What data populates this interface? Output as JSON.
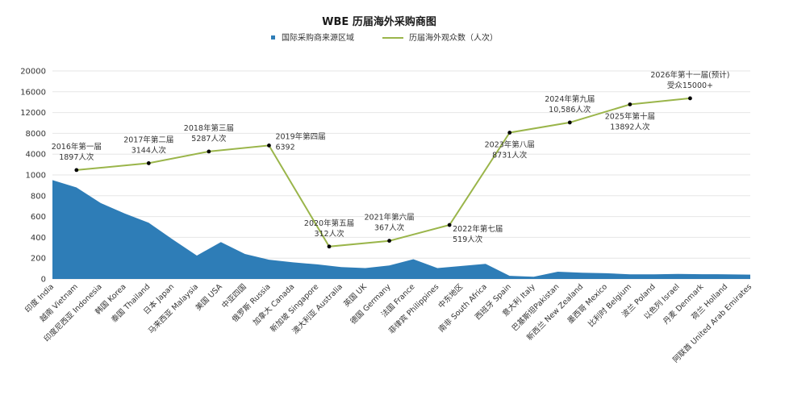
{
  "chart_data": {
    "type": "area+line",
    "title": "WBE 历届海外采购商图",
    "legend": {
      "placement": "top",
      "area_label": "国际采购商来源区域",
      "line_label": "历届海外观众数（人次）"
    },
    "colors": {
      "area": "#2e7db7",
      "line": "#9ab54a",
      "marker": "#000000",
      "grid": "#e6e6e6"
    },
    "y_ticks": [
      "0",
      "200",
      "400",
      "600",
      "800",
      "1000",
      "4000",
      "8000",
      "12000",
      "16000",
      "20000"
    ],
    "categories": [
      "印度 India",
      "越南 Vietnam",
      "印度尼西亚 Indonesia",
      "韩国 Korea",
      "泰国 Thailand",
      "日本 Japan",
      "马来西亚 Malaysia",
      "美国 USA",
      "中亚四国",
      "俄罗斯 Russia",
      "加拿大 Canada",
      "新加坡 Singapore",
      "澳大利亚 Australia",
      "英国 UK",
      "德国 Germany",
      "法国 France",
      "菲律宾 Philippines",
      "中东地区",
      "南非 South Africa",
      "西班牙 Spain",
      "意大利 Italy",
      "巴基斯坦Pakistan",
      "新西兰 New Zealand",
      "墨西哥 Mexico",
      "比利时 Belgium",
      "波兰 Poland",
      "以色列 Israel",
      "丹麦 Denmark",
      "荷兰 Holland",
      "阿联酋 United Arab Emirates"
    ],
    "area_series": {
      "name": "国际采购商来源区域",
      "values": [
        950,
        880,
        730,
        630,
        540,
        380,
        225,
        355,
        240,
        185,
        160,
        140,
        115,
        105,
        130,
        190,
        105,
        125,
        145,
        30,
        22,
        70,
        60,
        55,
        45,
        45,
        48,
        46,
        45,
        42
      ]
    },
    "line_series": {
      "name": "历届海外观众数（人次）",
      "points": [
        {
          "x_index": 1,
          "value": 1897,
          "label_lines": [
            "2016年第一届",
            "1897人次"
          ],
          "label_pos": "above"
        },
        {
          "x_index": 4,
          "value": 3144,
          "label_lines": [
            "2017年第二届",
            "3144人次"
          ],
          "label_pos": "above"
        },
        {
          "x_index": 6.5,
          "value": 5287,
          "label_lines": [
            "2018年第三届",
            "5287人次"
          ],
          "label_pos": "above"
        },
        {
          "x_index": 9,
          "value": 6392,
          "label_lines": [
            "2019年第四届",
            "6392"
          ],
          "label_pos": "right"
        },
        {
          "x_index": 11.5,
          "value": 312,
          "label_lines": [
            "2020年第五届",
            "312人次"
          ],
          "label_pos": "above"
        },
        {
          "x_index": 14,
          "value": 367,
          "label_lines": [
            "2021年第六届",
            "367人次"
          ],
          "label_pos": "above"
        },
        {
          "x_index": 16.5,
          "value": 519,
          "label_lines": [
            "2022年第七届",
            "519人次"
          ],
          "label_pos": "below-right"
        },
        {
          "x_index": 19,
          "value": 8731,
          "label_lines": [
            "2023年第八届",
            "8731人次"
          ],
          "label_pos": "below"
        },
        {
          "x_index": 21.5,
          "value": 10586,
          "label_lines": [
            "2024年第九届",
            "10,586人次"
          ],
          "label_pos": "above"
        },
        {
          "x_index": 24,
          "value": 13892,
          "label_lines": [
            "2025年第十届",
            "13892人次"
          ],
          "label_pos": "below"
        },
        {
          "x_index": 26.5,
          "value": 15000,
          "label_lines": [
            "2026年第十一届(预计)",
            "受众15000+"
          ],
          "label_pos": "above"
        }
      ]
    }
  }
}
